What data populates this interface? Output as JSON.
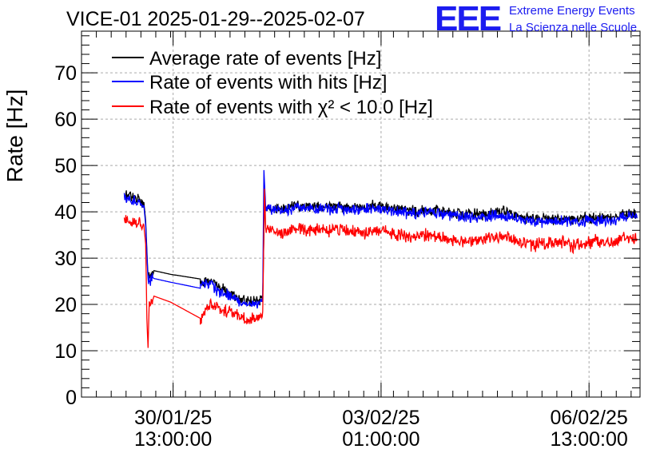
{
  "chart_data": {
    "type": "line",
    "title": "VICE-01 2025-01-29--2025-02-07",
    "xlabel": "",
    "ylabel": "Rate [Hz]",
    "ylim": [
      0,
      79
    ],
    "yticks": [
      0,
      10,
      20,
      30,
      40,
      50,
      60,
      70
    ],
    "xlim_days_from_20250129_0000": [
      0.0,
      9.4
    ],
    "xticks": [
      {
        "t": 1.5417,
        "date": "30/01/25",
        "time": "13:00:00"
      },
      {
        "t": 5.0417,
        "date": "03/02/25",
        "time": "01:00:00"
      },
      {
        "t": 8.5417,
        "date": "06/02/25",
        "time": "13:00:00"
      }
    ],
    "grid": true,
    "legend_position": "top-left",
    "branding": {
      "logo_text": "EEE",
      "line1": "Extreme Energy Events",
      "line2": "La Scienza nelle Scuole",
      "color": "#1c1cf0"
    },
    "series": [
      {
        "name": "Average rate of events [Hz]",
        "color": "#000000",
        "noise": 1.0,
        "points": [
          [
            0.72,
            43.6
          ],
          [
            0.9,
            42.8
          ],
          [
            1.05,
            42.0
          ],
          [
            1.08,
            38.0
          ],
          [
            1.12,
            25.5
          ],
          [
            1.2,
            26.3
          ],
          [
            1.22,
            27.3
          ],
          [
            1.5,
            26.5
          ],
          [
            2.0,
            25.5
          ],
          [
            2.0,
            24.0
          ],
          [
            2.1,
            25.2
          ],
          [
            2.3,
            23.8
          ],
          [
            2.6,
            21.5
          ],
          [
            2.8,
            20.5
          ],
          [
            3.0,
            21.0
          ],
          [
            3.05,
            22.0
          ],
          [
            3.08,
            42.0
          ],
          [
            3.12,
            40.5
          ],
          [
            3.4,
            40.8
          ],
          [
            3.6,
            41.6
          ],
          [
            3.9,
            41.2
          ],
          [
            4.3,
            41.3
          ],
          [
            4.6,
            40.9
          ],
          [
            5.0,
            41.4
          ],
          [
            5.3,
            40.6
          ],
          [
            5.6,
            40.2
          ],
          [
            5.9,
            40.6
          ],
          [
            6.2,
            40.0
          ],
          [
            6.5,
            39.4
          ],
          [
            6.8,
            39.5
          ],
          [
            7.1,
            39.9
          ],
          [
            7.4,
            38.8
          ],
          [
            7.7,
            38.4
          ],
          [
            8.0,
            38.6
          ],
          [
            8.3,
            38.3
          ],
          [
            8.6,
            38.8
          ],
          [
            8.9,
            38.6
          ],
          [
            9.15,
            39.8
          ],
          [
            9.35,
            39.2
          ]
        ]
      },
      {
        "name": "Rate of events with hits [Hz]",
        "color": "#0000ff",
        "noise": 1.0,
        "points": [
          [
            0.72,
            43.0
          ],
          [
            0.9,
            42.2
          ],
          [
            1.05,
            41.4
          ],
          [
            1.08,
            37.0
          ],
          [
            1.12,
            25.0
          ],
          [
            1.2,
            25.8
          ],
          [
            1.22,
            25.6
          ],
          [
            1.5,
            24.8
          ],
          [
            2.0,
            23.5
          ],
          [
            2.0,
            24.2
          ],
          [
            2.1,
            24.5
          ],
          [
            2.3,
            23.0
          ],
          [
            2.6,
            21.0
          ],
          [
            2.8,
            20.0
          ],
          [
            3.0,
            20.5
          ],
          [
            3.05,
            21.5
          ],
          [
            3.07,
            49.0
          ],
          [
            3.1,
            41.0
          ],
          [
            3.4,
            40.2
          ],
          [
            3.6,
            41.0
          ],
          [
            3.9,
            40.6
          ],
          [
            4.3,
            40.7
          ],
          [
            4.6,
            40.3
          ],
          [
            5.0,
            40.8
          ],
          [
            5.3,
            40.0
          ],
          [
            5.6,
            39.6
          ],
          [
            5.9,
            40.0
          ],
          [
            6.2,
            39.4
          ],
          [
            6.5,
            38.8
          ],
          [
            6.8,
            38.9
          ],
          [
            7.1,
            39.3
          ],
          [
            7.4,
            38.2
          ],
          [
            7.7,
            37.8
          ],
          [
            8.0,
            38.0
          ],
          [
            8.3,
            37.7
          ],
          [
            8.6,
            38.2
          ],
          [
            8.9,
            38.0
          ],
          [
            9.15,
            39.2
          ],
          [
            9.35,
            38.6
          ]
        ]
      },
      {
        "name": "Rate of events with χ² < 10.0 [Hz]",
        "color": "#ff0000",
        "noise": 1.2,
        "points": [
          [
            0.72,
            38.3
          ],
          [
            0.9,
            37.6
          ],
          [
            1.05,
            37.0
          ],
          [
            1.08,
            33.0
          ],
          [
            1.1,
            17.0
          ],
          [
            1.12,
            10.6
          ],
          [
            1.14,
            20.5
          ],
          [
            1.2,
            21.0
          ],
          [
            1.22,
            21.8
          ],
          [
            1.5,
            20.5
          ],
          [
            2.0,
            17.0
          ],
          [
            2.0,
            16.0
          ],
          [
            2.05,
            18.0
          ],
          [
            2.1,
            19.8
          ],
          [
            2.3,
            19.5
          ],
          [
            2.6,
            17.5
          ],
          [
            2.8,
            16.3
          ],
          [
            3.0,
            17.5
          ],
          [
            3.05,
            18.5
          ],
          [
            3.08,
            45.0
          ],
          [
            3.1,
            36.5
          ],
          [
            3.4,
            35.2
          ],
          [
            3.6,
            36.6
          ],
          [
            3.9,
            35.8
          ],
          [
            4.3,
            36.2
          ],
          [
            4.6,
            35.6
          ],
          [
            5.0,
            35.8
          ],
          [
            5.3,
            35.2
          ],
          [
            5.6,
            34.4
          ],
          [
            5.9,
            35.0
          ],
          [
            6.2,
            34.0
          ],
          [
            6.5,
            33.6
          ],
          [
            6.8,
            34.0
          ],
          [
            7.1,
            34.8
          ],
          [
            7.4,
            33.2
          ],
          [
            7.7,
            33.0
          ],
          [
            8.0,
            33.4
          ],
          [
            8.3,
            32.8
          ],
          [
            8.6,
            33.6
          ],
          [
            8.9,
            33.2
          ],
          [
            9.15,
            34.8
          ],
          [
            9.35,
            33.8
          ]
        ]
      }
    ]
  }
}
